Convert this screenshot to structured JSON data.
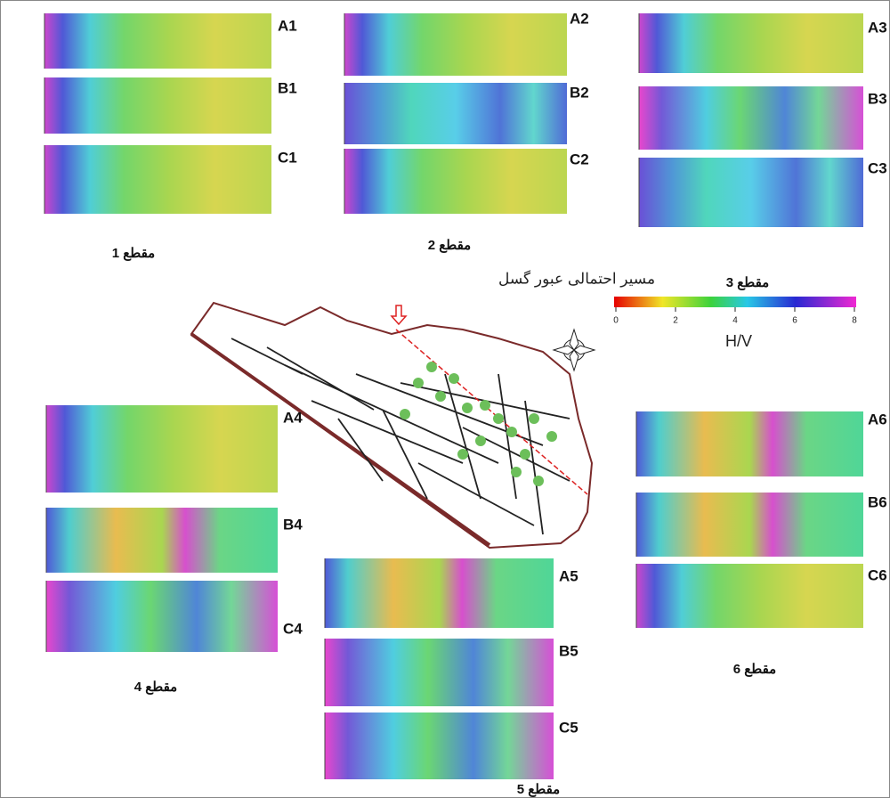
{
  "sections": [
    {
      "label": "مقطع 1",
      "panels": [
        "A1",
        "B1",
        "C1"
      ]
    },
    {
      "label": "مقطع 2",
      "panels": [
        "A2",
        "B2",
        "C2"
      ]
    },
    {
      "label": "مقطع 3",
      "panels": [
        "A3",
        "B3",
        "C3"
      ]
    },
    {
      "label": "مقطع 4",
      "panels": [
        "A4",
        "B4",
        "C4"
      ]
    },
    {
      "label": "مقطع 5",
      "panels": [
        "A5",
        "B5",
        "C5"
      ]
    },
    {
      "label": "مقطع 6",
      "panels": [
        "A6",
        "B6",
        "C6"
      ]
    }
  ],
  "map": {
    "fault_label": "مسیر احتمالی عبور گسل"
  },
  "colorbar": {
    "label": "H/V",
    "ticks": [
      "0",
      "2",
      "4",
      "6",
      "8"
    ]
  }
}
